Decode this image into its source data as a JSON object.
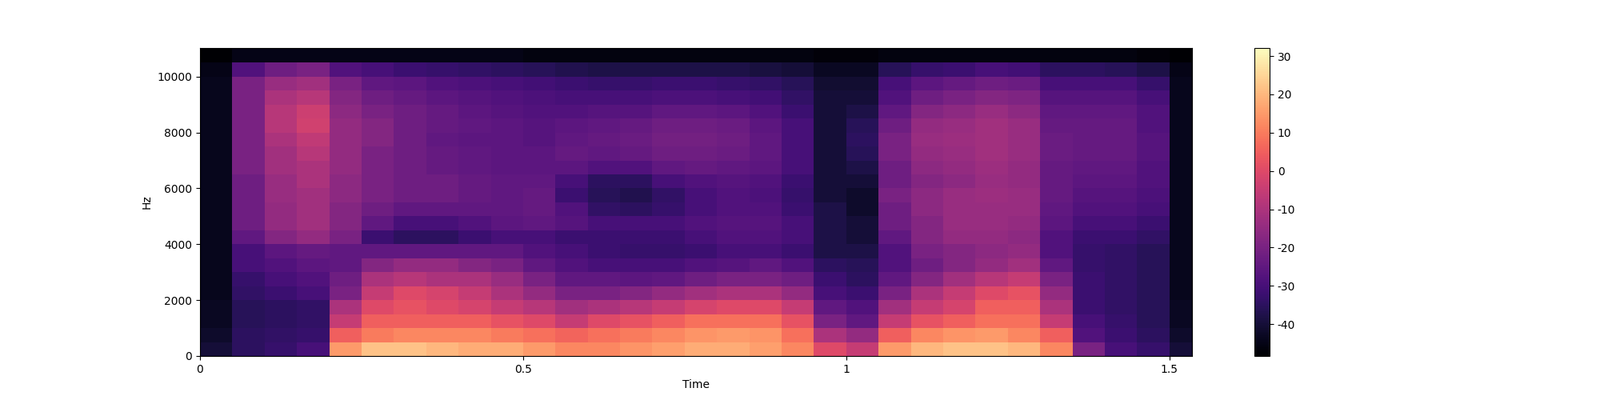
{
  "chart_data": {
    "type": "heatmap",
    "x_label": "Time",
    "y_label": "Hz",
    "xlim": [
      0,
      1.535
    ],
    "xticks": [
      0,
      0.5,
      1,
      1.5
    ],
    "ylim": [
      0,
      11025
    ],
    "yticks": [
      0,
      2000,
      4000,
      6000,
      8000,
      10000
    ],
    "color": "magma",
    "x_edges": [
      0,
      0.05,
      0.1,
      0.15,
      0.2,
      0.25,
      0.3,
      0.35,
      0.4,
      0.45,
      0.5,
      0.55,
      0.6,
      0.65,
      0.7,
      0.75,
      0.8,
      0.85,
      0.9,
      0.95,
      1.0,
      1.05,
      1.1,
      1.15,
      1.2,
      1.25,
      1.3,
      1.35,
      1.4,
      1.45,
      1.5,
      1.55
    ],
    "y_edges": [
      0,
      500,
      1000,
      1500,
      2000,
      2500,
      3000,
      3500,
      4000,
      4500,
      5000,
      5500,
      6000,
      6500,
      7000,
      7500,
      8000,
      8500,
      9000,
      9500,
      10000,
      10500,
      11000
    ],
    "colorbar": {
      "range": [
        -48.3,
        32.1
      ],
      "ticks": [
        -40,
        -30,
        -20,
        -10,
        0,
        10,
        20,
        30
      ]
    },
    "cells": [
      [
        -40,
        -42,
        -43,
        -43,
        -44,
        -44,
        -44,
        -44,
        -44,
        -44,
        -44,
        -44,
        -44,
        -44,
        -44,
        -44,
        -44,
        -44,
        -44,
        -44,
        -45,
        -48
      ],
      [
        -35,
        -35,
        -36,
        -36,
        -34,
        -33,
        -30,
        -30,
        -25,
        -22,
        -22,
        -22,
        -22,
        -20,
        -20,
        -20,
        -20,
        -20,
        -20,
        -20,
        -28,
        -45
      ],
      [
        -33,
        -34,
        -35,
        -35,
        -32,
        -30,
        -28,
        -26,
        -18,
        -15,
        -15,
        -14,
        -14,
        -12,
        -12,
        -10,
        -8,
        -8,
        -10,
        -14,
        -22,
        -45
      ],
      [
        -30,
        -33,
        -34,
        -34,
        -30,
        -28,
        -26,
        -24,
        -15,
        -12,
        -12,
        -12,
        -10,
        -10,
        -8,
        -6,
        -3,
        -4,
        -8,
        -12,
        -20,
        -45
      ],
      [
        15,
        5,
        -5,
        -10,
        -20,
        -22,
        -25,
        -25,
        -20,
        -18,
        -18,
        -16,
        -16,
        -15,
        -15,
        -15,
        -15,
        -16,
        -18,
        -20,
        -28,
        -45
      ],
      [
        22,
        10,
        5,
        0,
        -5,
        -10,
        -18,
        -25,
        -32,
        -25,
        -22,
        -20,
        -20,
        -20,
        -20,
        -18,
        -18,
        -20,
        -22,
        -25,
        -30,
        -45
      ],
      [
        22,
        12,
        5,
        2,
        0,
        -8,
        -15,
        -25,
        -35,
        -30,
        -25,
        -22,
        -22,
        -22,
        -22,
        -22,
        -22,
        -22,
        -24,
        -26,
        -32,
        -45
      ],
      [
        20,
        12,
        5,
        0,
        -2,
        -10,
        -15,
        -25,
        -35,
        -30,
        -25,
        -22,
        -22,
        -24,
        -24,
        -25,
        -24,
        -24,
        -26,
        -28,
        -33,
        -45
      ],
      [
        18,
        12,
        5,
        -2,
        -5,
        -10,
        -18,
        -25,
        -32,
        -28,
        -25,
        -24,
        -24,
        -25,
        -25,
        -26,
        -25,
        -26,
        -27,
        -29,
        -34,
        -45
      ],
      [
        18,
        10,
        2,
        -5,
        -10,
        -14,
        -20,
        -25,
        -30,
        -26,
        -25,
        -25,
        -25,
        -26,
        -26,
        -26,
        -26,
        -27,
        -28,
        -30,
        -35,
        -45
      ],
      [
        15,
        8,
        0,
        -8,
        -15,
        -20,
        -25,
        -28,
        -30,
        -25,
        -24,
        -24,
        -25,
        -26,
        -26,
        -27,
        -27,
        -28,
        -29,
        -31,
        -36,
        -46
      ],
      [
        12,
        6,
        -5,
        -12,
        -20,
        -25,
        -28,
        -30,
        -32,
        -27,
        -28,
        -32,
        -30,
        -26,
        -24,
        -25,
        -26,
        -28,
        -30,
        -32,
        -37,
        -46
      ],
      [
        12,
        8,
        0,
        -10,
        -20,
        -25,
        -30,
        -32,
        -32,
        -30,
        -34,
        -36,
        -35,
        -28,
        -25,
        -24,
        -25,
        -27,
        -30,
        -33,
        -38,
        -46
      ],
      [
        14,
        10,
        2,
        -8,
        -18,
        -26,
        -30,
        -33,
        -32,
        -30,
        -35,
        -37,
        -35,
        -28,
        -24,
        -23,
        -24,
        -27,
        -30,
        -33,
        -38,
        -46
      ],
      [
        16,
        12,
        5,
        -5,
        -15,
        -25,
        -30,
        -33,
        -32,
        -30,
        -33,
        -34,
        -30,
        -25,
        -22,
        -21,
        -22,
        -25,
        -29,
        -32,
        -38,
        -46
      ],
      [
        18,
        14,
        8,
        -2,
        -12,
        -22,
        -28,
        -32,
        -30,
        -28,
        -30,
        -30,
        -28,
        -24,
        -22,
        -21,
        -22,
        -25,
        -29,
        -32,
        -38,
        -46
      ],
      [
        18,
        15,
        8,
        0,
        -10,
        -20,
        -27,
        -30,
        -28,
        -27,
        -28,
        -28,
        -27,
        -25,
        -23,
        -22,
        -23,
        -26,
        -30,
        -33,
        -38,
        -46
      ],
      [
        16,
        14,
        8,
        0,
        -10,
        -20,
        -25,
        -30,
        -28,
        -27,
        -28,
        -29,
        -28,
        -26,
        -25,
        -25,
        -26,
        -28,
        -31,
        -34,
        -39,
        -46
      ],
      [
        12,
        8,
        2,
        -5,
        -15,
        -22,
        -28,
        -32,
        -30,
        -30,
        -32,
        -33,
        -32,
        -30,
        -30,
        -30,
        -30,
        -32,
        -34,
        -36,
        -40,
        -46
      ],
      [
        0,
        -10,
        -20,
        -25,
        -30,
        -32,
        -35,
        -38,
        -38,
        -38,
        -38,
        -40,
        -40,
        -40,
        -40,
        -40,
        -40,
        -40,
        -40,
        -41,
        -43,
        -47
      ],
      [
        -5,
        -15,
        -25,
        -28,
        -32,
        -35,
        -36,
        -38,
        -40,
        -40,
        -42,
        -42,
        -40,
        -38,
        -36,
        -35,
        -36,
        -38,
        -40,
        -41,
        -43,
        -47
      ],
      [
        15,
        5,
        -5,
        -12,
        -20,
        -25,
        -28,
        -28,
        -25,
        -22,
        -22,
        -20,
        -22,
        -22,
        -20,
        -20,
        -22,
        -25,
        -28,
        -30,
        -36,
        -46
      ],
      [
        20,
        12,
        2,
        -5,
        -10,
        -18,
        -22,
        -20,
        -18,
        -18,
        -16,
        -16,
        -18,
        -16,
        -15,
        -14,
        -15,
        -18,
        -22,
        -26,
        -33,
        -46
      ],
      [
        22,
        14,
        5,
        -2,
        -5,
        -12,
        -18,
        -18,
        -15,
        -14,
        -14,
        -14,
        -16,
        -15,
        -14,
        -13,
        -14,
        -16,
        -20,
        -24,
        -32,
        -46
      ],
      [
        22,
        15,
        8,
        5,
        0,
        -8,
        -15,
        -16,
        -15,
        -14,
        -14,
        -13,
        -14,
        -13,
        -12,
        -12,
        -12,
        -14,
        -18,
        -22,
        -30,
        -46
      ],
      [
        20,
        12,
        8,
        5,
        2,
        -5,
        -12,
        -15,
        -16,
        -15,
        -14,
        -14,
        -15,
        -15,
        -14,
        -14,
        -14,
        -16,
        -19,
        -23,
        -31,
        -46
      ],
      [
        12,
        5,
        -5,
        -10,
        -15,
        -20,
        -25,
        -28,
        -28,
        -26,
        -25,
        -24,
        -24,
        -24,
        -23,
        -23,
        -24,
        -25,
        -27,
        -30,
        -35,
        -46
      ],
      [
        -20,
        -28,
        -30,
        -32,
        -32,
        -32,
        -33,
        -33,
        -32,
        -30,
        -28,
        -27,
        -26,
        -25,
        -24,
        -24,
        -24,
        -25,
        -27,
        -30,
        -35,
        -46
      ],
      [
        -30,
        -32,
        -33,
        -34,
        -34,
        -34,
        -34,
        -34,
        -32,
        -30,
        -28,
        -27,
        -26,
        -25,
        -24,
        -24,
        -24,
        -25,
        -27,
        -30,
        -36,
        -46
      ],
      [
        -33,
        -35,
        -36,
        -36,
        -36,
        -36,
        -36,
        -36,
        -34,
        -32,
        -30,
        -29,
        -28,
        -28,
        -27,
        -27,
        -28,
        -28,
        -30,
        -33,
        -38,
        -47
      ],
      [
        -40,
        -42,
        -43,
        -43,
        -44,
        -44,
        -44,
        -44,
        -44,
        -44,
        -44,
        -44,
        -44,
        -44,
        -44,
        -44,
        -44,
        -44,
        -44,
        -44,
        -45,
        -48
      ]
    ]
  }
}
